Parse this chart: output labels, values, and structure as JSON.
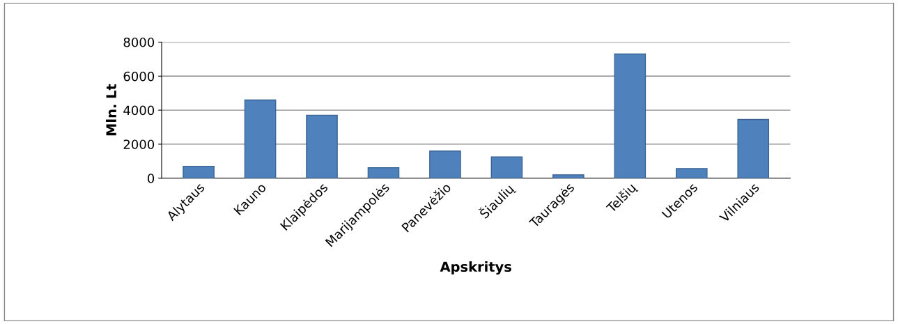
{
  "chart_data": {
    "type": "bar",
    "xlabel": "Apskritys",
    "ylabel": "Mln. Lt",
    "categories": [
      "Alytaus",
      "Kauno",
      "Klaipėdos",
      "Marijampolės",
      "Panevėžio",
      "Šiaulių",
      "Tauragės",
      "Telšių",
      "Utenos",
      "Vilniaus"
    ],
    "values": [
      700,
      4600,
      3700,
      620,
      1600,
      1250,
      200,
      7300,
      570,
      3450
    ],
    "color": "#4f81bd",
    "ylim": [
      0,
      8000
    ],
    "yticks": [
      0,
      2000,
      4000,
      6000,
      8000
    ],
    "grid": "y",
    "legend": false
  }
}
